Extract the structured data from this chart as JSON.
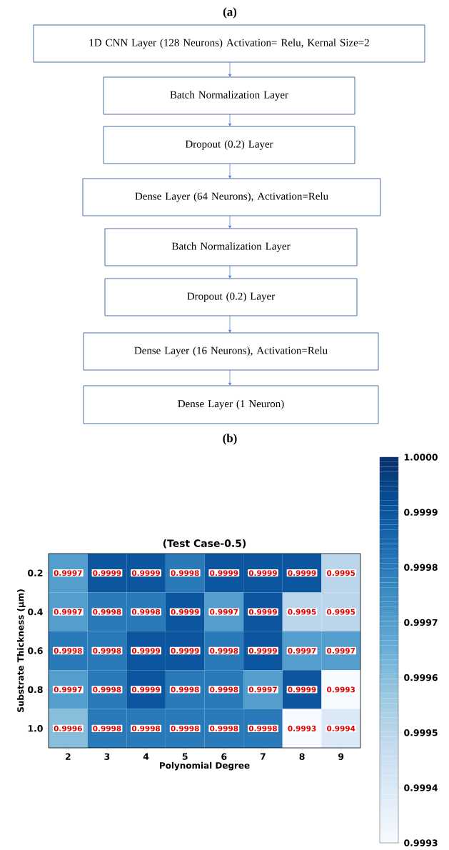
{
  "chart_data": [
    {
      "type": "other",
      "title": "(a)",
      "annotations": [
        "1D CNN Layer (128 Neurons) Activation= Relu, Kernal Size=2",
        "Batch Normalization Layer",
        "Dropout (0.2) Layer",
        "Dense Layer (64 Neurons), Activation=Relu",
        "Batch Normalization Layer",
        "Dropout (0.2) Layer",
        "Dense Layer (16 Neurons), Activation=Relu",
        "Dense Layer (1 Neuron)"
      ]
    },
    {
      "type": "heatmap",
      "title": "(b)",
      "subtitle": "(Test Case-0.5)",
      "xlabel": "Polynomial Degree",
      "ylabel": "Substrate Thickness (μm)",
      "categories": [
        "2",
        "3",
        "4",
        "5",
        "6",
        "7",
        "8",
        "9"
      ],
      "y_categories": [
        "0.2",
        "0.4",
        "0.6",
        "0.8",
        "1.0"
      ],
      "cells": [
        [
          0.9997,
          0.9999,
          0.9999,
          0.9998,
          0.9999,
          0.9999,
          0.9999,
          0.9995
        ],
        [
          0.9997,
          0.9998,
          0.9998,
          0.9999,
          0.9997,
          0.9999,
          0.9995,
          0.9995
        ],
        [
          0.9998,
          0.9998,
          0.9999,
          0.9999,
          0.9998,
          0.9999,
          0.9997,
          0.9997
        ],
        [
          0.9997,
          0.9998,
          0.9999,
          0.9998,
          0.9998,
          0.9997,
          0.9999,
          0.9993
        ],
        [
          0.9996,
          0.9998,
          0.9998,
          0.9998,
          0.9998,
          0.9998,
          0.9993,
          0.9994
        ]
      ],
      "clim": [
        0.9993,
        1.0
      ],
      "cticks": [
        0.9993,
        0.9994,
        0.9995,
        0.9996,
        0.9997,
        0.9998,
        0.9999,
        {
          "value": 1.0,
          "label": "1.0000"
        }
      ],
      "data_labels": true
    }
  ]
}
